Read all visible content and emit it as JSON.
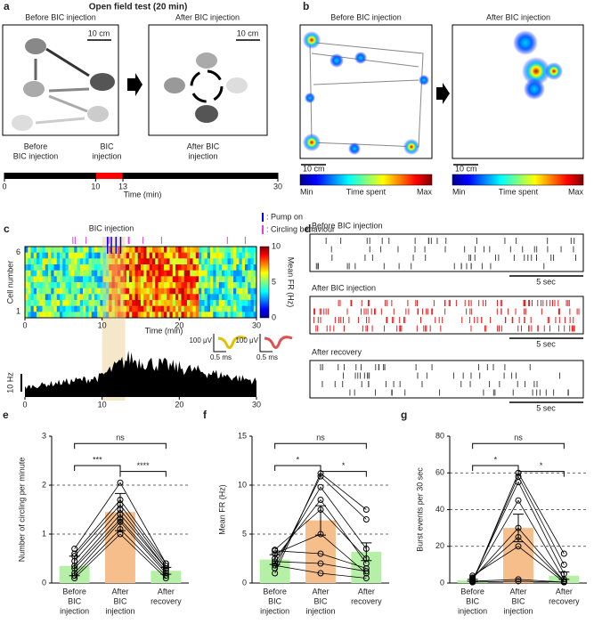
{
  "panels": {
    "a": {
      "label": "a",
      "title": "Open field test (20 min)",
      "before_title": "Before BIC injection",
      "after_title": "After BIC injection",
      "scale_before": "10 cm",
      "scale_after": "10 cm",
      "phases": [
        [
          "Before",
          "BIC injection"
        ],
        [
          "BIC",
          "injection"
        ],
        [
          "After BIC",
          "injection"
        ]
      ],
      "timeline": {
        "xlim": [
          0,
          30
        ],
        "xticks": [
          0,
          10,
          13,
          30
        ],
        "xlabel": "Time (min)"
      }
    },
    "b": {
      "label": "b",
      "before_title": "Before BIC injection",
      "after_title": "After BIC injection",
      "scale_before": "10 cm",
      "scale_after": "10 cm",
      "colorbar": {
        "min": "Min",
        "label": "Time spent",
        "max": "Max"
      }
    },
    "c": {
      "label": "c",
      "injection_label": "BIC injection",
      "legend": [
        ": Pump on",
        ": Circling behaviour"
      ],
      "ylabel": "Cell number",
      "yticks": [
        1,
        6
      ],
      "xlim": [
        0,
        30
      ],
      "xticks": [
        0,
        10,
        20,
        30
      ],
      "xlabel": "Time (min)",
      "colorbar": {
        "label": "Mean FR (Hz)",
        "lim": [
          0,
          10
        ],
        "ticks": [
          0,
          5,
          10
        ]
      },
      "rate_scale": "10 Hz",
      "amp_scale": "100 μV",
      "time_scale": "0.5 ms"
    },
    "d": {
      "label": "d",
      "sections": [
        {
          "title": "Before BIC injection",
          "scale": "5 sec"
        },
        {
          "title": "After BIC injection",
          "scale": "5 sec"
        },
        {
          "title": "After recovery",
          "scale": "5 sec"
        }
      ]
    }
  },
  "chart_data": [
    {
      "type": "bar",
      "label": "e",
      "ylabel": "Number of circling per minute",
      "categories": [
        [
          "Before",
          "BIC",
          "injection"
        ],
        [
          "After",
          "BIC",
          "injection"
        ],
        [
          "After",
          "recovery"
        ]
      ],
      "values": [
        0.35,
        1.45,
        0.25
      ],
      "errors": [
        0.2,
        0.38,
        0.07
      ],
      "colors": [
        "#b6f0a6",
        "#f6be8a",
        "#b6f0a6"
      ],
      "points": [
        [
          0.1,
          0.15,
          0.2,
          0.3,
          0.35,
          0.45,
          0.55,
          0.6,
          0.7
        ],
        [
          1.0,
          1.1,
          1.25,
          1.3,
          1.4,
          1.5,
          1.6,
          1.7,
          2.05
        ],
        [
          0.1,
          0.15,
          0.2,
          0.25,
          0.3,
          0.3,
          0.35,
          0.4,
          0.4
        ]
      ],
      "ylim": [
        0,
        3
      ],
      "yticks": [
        0,
        1,
        2,
        3
      ],
      "grid": true,
      "significance": [
        "***",
        "****",
        "ns"
      ]
    },
    {
      "type": "bar",
      "label": "f",
      "ylabel": "Mean FR (Hz)",
      "categories": [
        [
          "Before",
          "BIC",
          "injection"
        ],
        [
          "After",
          "BIC",
          "injection"
        ],
        [
          "After",
          "recovery"
        ]
      ],
      "values": [
        2.4,
        6.4,
        3.2
      ],
      "errors": [
        0.5,
        1.5,
        0.9
      ],
      "colors": [
        "#b6f0a6",
        "#f6be8a",
        "#b6f0a6"
      ],
      "points": [
        [
          1.0,
          1.5,
          2.0,
          2.5,
          3.0,
          3.3,
          2.2,
          1.8,
          3.4
        ],
        [
          11.2,
          10.9,
          9.8,
          8.5,
          5.0,
          3.0,
          2.0,
          1.0,
          7.5
        ],
        [
          7.5,
          6.5,
          3.5,
          2.0,
          1.0,
          1.5,
          1.2,
          0.5,
          2.5
        ]
      ],
      "ylim": [
        0,
        15
      ],
      "yticks": [
        0,
        5,
        10,
        15
      ],
      "grid": true,
      "significance": [
        "*",
        "*",
        "ns"
      ]
    },
    {
      "type": "bar",
      "label": "g",
      "ylabel": "Burst events per 30 sec",
      "categories": [
        [
          "Before",
          "BIC",
          "injection"
        ],
        [
          "After",
          "BIC",
          "injection"
        ],
        [
          "After",
          "recovery"
        ]
      ],
      "values": [
        1.5,
        30,
        4
      ],
      "errors": [
        0.5,
        7.5,
        2
      ],
      "colors": [
        "#b6f0a6",
        "#f6be8a",
        "#b6f0a6"
      ],
      "points": [
        [
          0.5,
          1,
          1.5,
          2,
          2.5,
          3,
          4,
          1,
          0.5
        ],
        [
          60,
          58,
          55,
          45,
          30,
          25,
          20,
          2,
          1
        ],
        [
          16,
          10,
          5,
          2,
          1,
          1,
          0.5,
          0.5,
          0.5
        ]
      ],
      "ylim": [
        0,
        80
      ],
      "yticks": [
        0,
        20,
        40,
        60,
        80
      ],
      "grid": true,
      "significance": [
        "*",
        "*",
        "ns"
      ]
    }
  ]
}
